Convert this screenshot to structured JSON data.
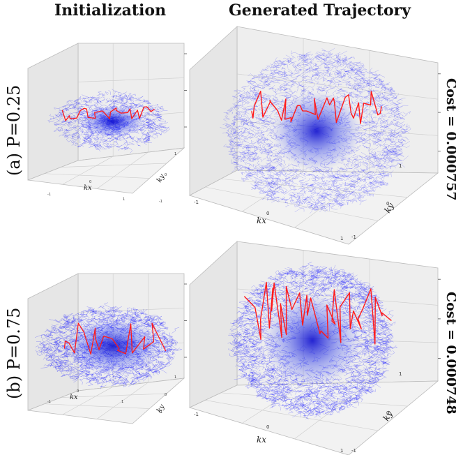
{
  "headers": {
    "initialization": "Initialization",
    "generated": "Generated Trajectory"
  },
  "rows": [
    {
      "label": "(a) P=0.25",
      "cost": "Cost = 0.000757",
      "spread": 0.25
    },
    {
      "label": "(b) P=0.75",
      "cost": "Cost = 0.000748",
      "spread": 0.75
    }
  ],
  "axes": {
    "kx": "kx",
    "ky": "ky",
    "tick_neg": "-1",
    "tick_zero": "0",
    "tick_pos": "1"
  },
  "colors": {
    "cloud": "#1a1aff",
    "trajectory": "#ff1a1a",
    "pane": "#eeeeee",
    "grid": "#cccccc"
  }
}
